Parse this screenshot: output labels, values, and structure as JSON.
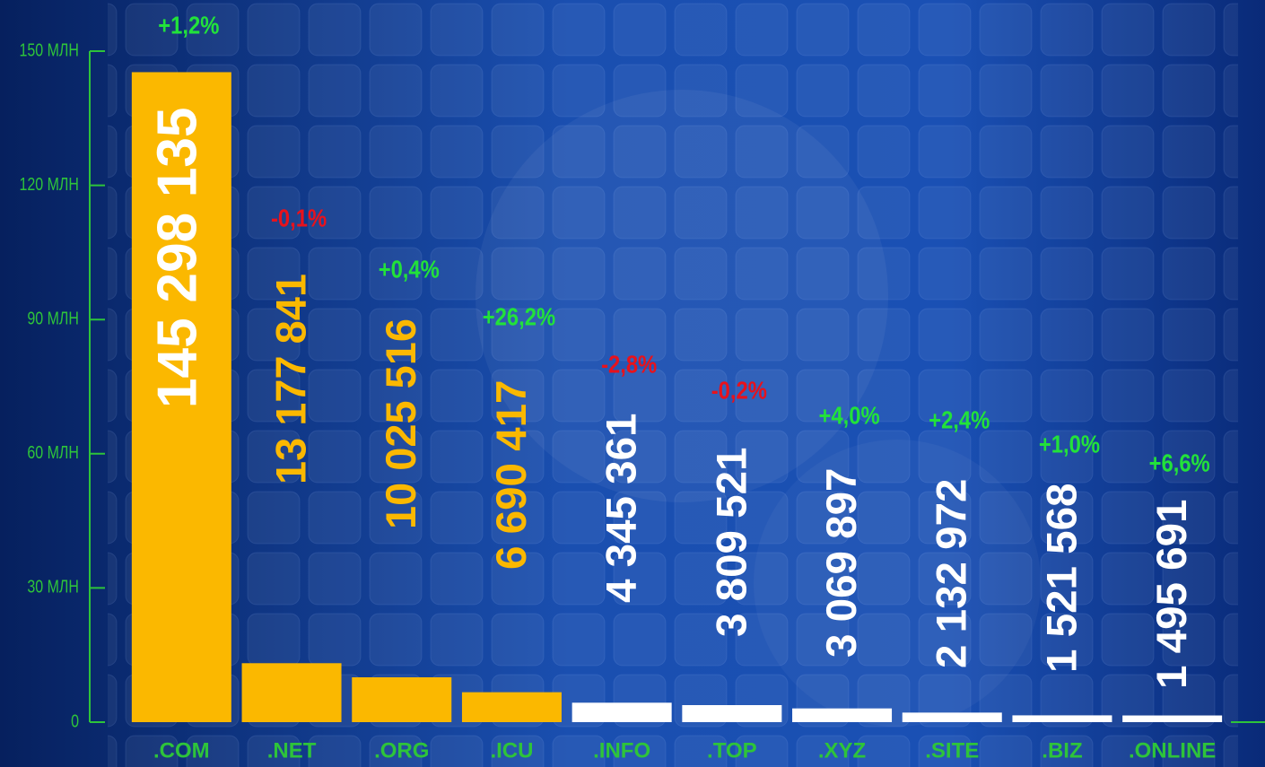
{
  "chart_data": {
    "type": "bar",
    "categories": [
      ".COM",
      ".NET",
      ".ORG",
      ".ICU",
      ".INFO",
      ".TOP",
      ".XYZ",
      ".SITE",
      ".BIZ",
      ".ONLINE"
    ],
    "values": [
      145298135,
      13177841,
      10025516,
      6690417,
      4345361,
      3809521,
      3069897,
      2132972,
      1521568,
      1495691
    ],
    "value_labels": [
      "145 298 135",
      "13 177 841",
      "10 025 516",
      "6 690 417",
      "4 345 361",
      "3 809 521",
      "3 069 897",
      "2 132 972",
      "1 521 568",
      "1 495 691"
    ],
    "colors": [
      "#fbb800",
      "#fbb800",
      "#fbb800",
      "#fbb800",
      "#ffffff",
      "#ffffff",
      "#ffffff",
      "#ffffff",
      "#ffffff",
      "#ffffff"
    ],
    "value_label_colors": [
      "#ffffff",
      "#fbb800",
      "#fbb800",
      "#fbb800",
      "#ffffff",
      "#ffffff",
      "#ffffff",
      "#ffffff",
      "#ffffff",
      "#ffffff"
    ],
    "changes": [
      "+1,2%",
      "-0,1%",
      "+0,4%",
      "+26,2%",
      "-2,8%",
      "-0,2%",
      "+4,0%",
      "+2,4%",
      "+1,0%",
      "+6,6%"
    ],
    "change_colors": [
      "#22e23a",
      "#e8121c",
      "#22e23a",
      "#22e23a",
      "#e8121c",
      "#e8121c",
      "#22e23a",
      "#22e23a",
      "#22e23a",
      "#22e23a"
    ],
    "axis_color": "#2ec43a",
    "ylim": [
      0,
      150000000
    ],
    "yticks": [
      {
        "value": 0,
        "label": "0"
      },
      {
        "value": 30000000,
        "label": "30 МЛН"
      },
      {
        "value": 60000000,
        "label": "60 МЛН"
      },
      {
        "value": 90000000,
        "label": "90 МЛН"
      },
      {
        "value": 120000000,
        "label": "120 МЛН"
      },
      {
        "value": 150000000,
        "label": "150 МЛН"
      }
    ]
  }
}
